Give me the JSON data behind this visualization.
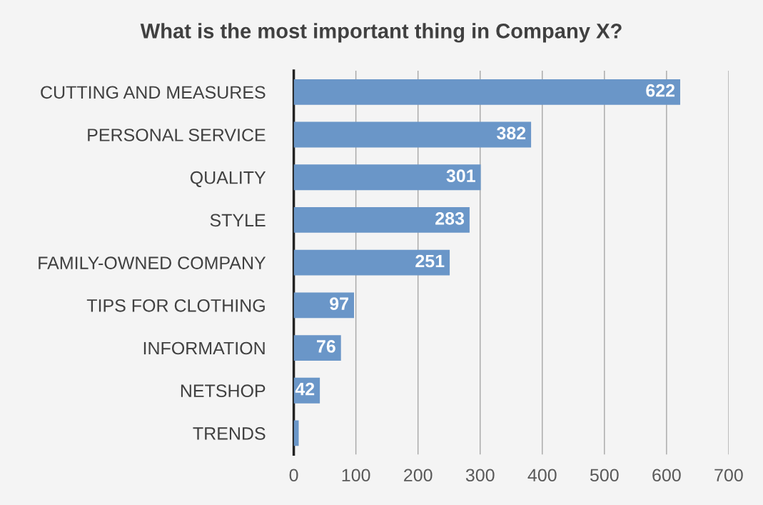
{
  "chart_data": {
    "type": "bar",
    "orientation": "horizontal",
    "title": "What is the most important thing in Company X?",
    "categories": [
      "CUTTING AND MEASURES",
      "PERSONAL SERVICE",
      "QUALITY",
      "STYLE",
      "FAMILY-OWNED COMPANY",
      "TIPS FOR CLOTHING",
      "INFORMATION",
      "NETSHOP",
      "TRENDS"
    ],
    "values": [
      622,
      382,
      301,
      283,
      251,
      97,
      76,
      42,
      8
    ],
    "value_labels": [
      "622",
      "382",
      "301",
      "283",
      "251",
      "97",
      "76",
      "42",
      null
    ],
    "color": "#6a96c8",
    "xlim": [
      0,
      700
    ],
    "xticks": [
      0,
      100,
      200,
      300,
      400,
      500,
      600,
      700
    ],
    "grid": "x"
  }
}
